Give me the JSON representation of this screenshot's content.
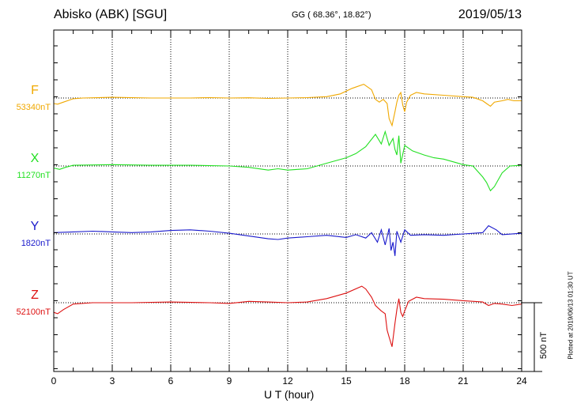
{
  "header": {
    "station": "Abisko (ABK)  [SGU]",
    "coords": "GG ( 68.36°,  18.82°)",
    "date": "2019/05/13"
  },
  "colors": {
    "F": "#f0a800",
    "X": "#22e022",
    "Y": "#1a1acc",
    "Z": "#dd1111"
  },
  "scale": {
    "label": "500 nT",
    "value_nT": 500
  },
  "footnote": "Plotted at 2019/06/13 01:30 UT",
  "chart_data": {
    "type": "line",
    "xlabel": "U T (hour)",
    "xlim": [
      0,
      24
    ],
    "xticks": [
      "0",
      "3",
      "6",
      "9",
      "12",
      "15",
      "18",
      "21",
      "24"
    ],
    "grid": true,
    "components": [
      {
        "name": "F",
        "baseline": "53340nT",
        "baseline_nT": 53340,
        "points": [
          [
            0,
            -40
          ],
          [
            0.2,
            -45
          ],
          [
            0.5,
            -30
          ],
          [
            1,
            -5
          ],
          [
            1.5,
            0
          ],
          [
            3,
            5
          ],
          [
            5,
            0
          ],
          [
            7,
            0
          ],
          [
            8,
            3
          ],
          [
            9,
            0
          ],
          [
            10,
            2
          ],
          [
            11,
            -3
          ],
          [
            12,
            0
          ],
          [
            13,
            3
          ],
          [
            14,
            10
          ],
          [
            14.7,
            30
          ],
          [
            15.3,
            70
          ],
          [
            15.9,
            100
          ],
          [
            16.1,
            80
          ],
          [
            16.3,
            60
          ],
          [
            16.5,
            -10
          ],
          [
            16.7,
            -30
          ],
          [
            16.9,
            -10
          ],
          [
            17.1,
            -40
          ],
          [
            17.2,
            -150
          ],
          [
            17.35,
            -200
          ],
          [
            17.5,
            -100
          ],
          [
            17.6,
            -30
          ],
          [
            17.7,
            20
          ],
          [
            17.8,
            40
          ],
          [
            17.9,
            -50
          ],
          [
            18.0,
            -100
          ],
          [
            18.1,
            -30
          ],
          [
            18.3,
            20
          ],
          [
            18.6,
            40
          ],
          [
            19,
            30
          ],
          [
            20,
            20
          ],
          [
            21,
            10
          ],
          [
            21.5,
            5
          ],
          [
            22,
            -20
          ],
          [
            22.2,
            -40
          ],
          [
            22.4,
            -60
          ],
          [
            22.6,
            -30
          ],
          [
            23,
            -20
          ],
          [
            23.3,
            -10
          ],
          [
            23.6,
            -20
          ],
          [
            24,
            -20
          ]
        ]
      },
      {
        "name": "X",
        "baseline": "11270nT",
        "baseline_nT": 11270,
        "points": [
          [
            0,
            -15
          ],
          [
            0.3,
            -25
          ],
          [
            0.6,
            -10
          ],
          [
            1,
            5
          ],
          [
            3,
            10
          ],
          [
            5,
            5
          ],
          [
            7,
            5
          ],
          [
            9,
            0
          ],
          [
            10,
            -10
          ],
          [
            11,
            -30
          ],
          [
            11.5,
            -20
          ],
          [
            12,
            -30
          ],
          [
            13,
            -20
          ],
          [
            14,
            20
          ],
          [
            15,
            60
          ],
          [
            15.5,
            90
          ],
          [
            16,
            140
          ],
          [
            16.5,
            230
          ],
          [
            16.8,
            160
          ],
          [
            17,
            250
          ],
          [
            17.2,
            150
          ],
          [
            17.4,
            200
          ],
          [
            17.5,
            120
          ],
          [
            17.6,
            80
          ],
          [
            17.7,
            220
          ],
          [
            17.8,
            20
          ],
          [
            18,
            150
          ],
          [
            18.4,
            110
          ],
          [
            19,
            80
          ],
          [
            19.5,
            60
          ],
          [
            20,
            50
          ],
          [
            20.5,
            30
          ],
          [
            21,
            10
          ],
          [
            21.5,
            0
          ],
          [
            22,
            -80
          ],
          [
            22.2,
            -120
          ],
          [
            22.4,
            -180
          ],
          [
            22.6,
            -150
          ],
          [
            22.8,
            -100
          ],
          [
            23,
            -50
          ],
          [
            23.4,
            0
          ],
          [
            24,
            5
          ]
        ]
      },
      {
        "name": "Y",
        "baseline": "1820nT",
        "baseline_nT": 1820,
        "points": [
          [
            0,
            10
          ],
          [
            1,
            15
          ],
          [
            2,
            20
          ],
          [
            3,
            15
          ],
          [
            4,
            10
          ],
          [
            5,
            15
          ],
          [
            6,
            25
          ],
          [
            7,
            30
          ],
          [
            8,
            20
          ],
          [
            9,
            5
          ],
          [
            10,
            -15
          ],
          [
            11,
            -35
          ],
          [
            11.5,
            -40
          ],
          [
            12,
            -30
          ],
          [
            13,
            -20
          ],
          [
            14,
            -10
          ],
          [
            15,
            -25
          ],
          [
            15.5,
            -5
          ],
          [
            16,
            -30
          ],
          [
            16.3,
            10
          ],
          [
            16.6,
            -60
          ],
          [
            16.8,
            30
          ],
          [
            17,
            -80
          ],
          [
            17.2,
            40
          ],
          [
            17.3,
            -120
          ],
          [
            17.4,
            -60
          ],
          [
            17.5,
            -160
          ],
          [
            17.6,
            20
          ],
          [
            17.8,
            -60
          ],
          [
            18,
            30
          ],
          [
            18.3,
            -10
          ],
          [
            19,
            -5
          ],
          [
            20,
            -10
          ],
          [
            21,
            0
          ],
          [
            22,
            10
          ],
          [
            22.3,
            60
          ],
          [
            22.7,
            30
          ],
          [
            23,
            -5
          ],
          [
            24,
            5
          ]
        ]
      },
      {
        "name": "Z",
        "baseline": "52100nT",
        "baseline_nT": 52100,
        "points": [
          [
            0,
            -70
          ],
          [
            0.2,
            -80
          ],
          [
            0.5,
            -50
          ],
          [
            1,
            -10
          ],
          [
            2,
            0
          ],
          [
            4,
            0
          ],
          [
            6,
            5
          ],
          [
            8,
            0
          ],
          [
            9,
            -5
          ],
          [
            10,
            10
          ],
          [
            11,
            5
          ],
          [
            12,
            0
          ],
          [
            13,
            5
          ],
          [
            14,
            30
          ],
          [
            15,
            70
          ],
          [
            15.8,
            120
          ],
          [
            16,
            100
          ],
          [
            16.3,
            40
          ],
          [
            16.5,
            -20
          ],
          [
            16.8,
            -60
          ],
          [
            17,
            -80
          ],
          [
            17.1,
            -200
          ],
          [
            17.2,
            -250
          ],
          [
            17.35,
            -320
          ],
          [
            17.5,
            -150
          ],
          [
            17.6,
            -50
          ],
          [
            17.7,
            30
          ],
          [
            17.8,
            -70
          ],
          [
            17.9,
            -100
          ],
          [
            18,
            -60
          ],
          [
            18.2,
            10
          ],
          [
            18.6,
            40
          ],
          [
            19,
            30
          ],
          [
            20,
            25
          ],
          [
            21,
            15
          ],
          [
            22,
            5
          ],
          [
            22.3,
            -20
          ],
          [
            22.6,
            -5
          ],
          [
            23,
            -10
          ],
          [
            23.5,
            -20
          ],
          [
            24,
            -10
          ]
        ]
      }
    ]
  }
}
